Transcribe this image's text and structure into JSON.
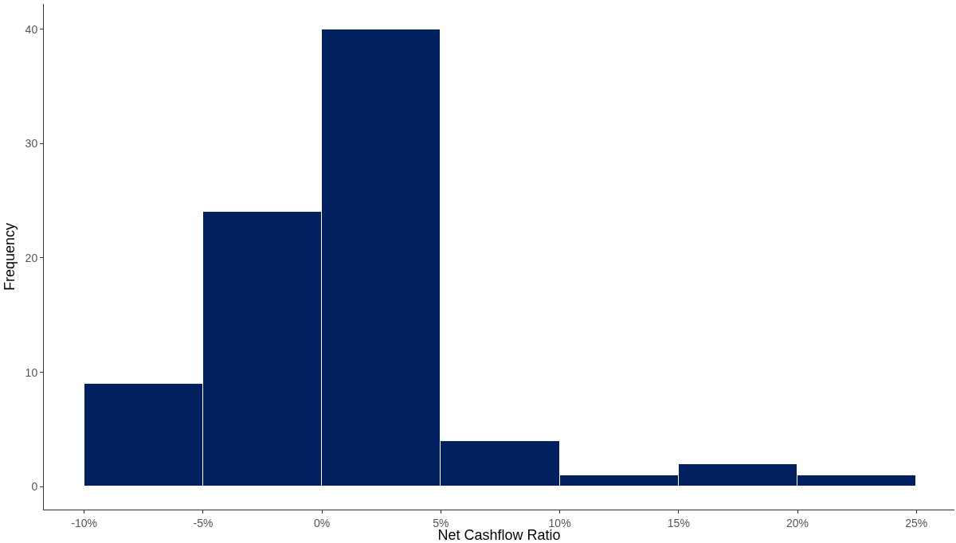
{
  "chart_data": {
    "type": "histogram",
    "xlabel": "Net Cashflow Ratio",
    "ylabel": "Frequency",
    "bins": [
      -10,
      -5,
      0,
      5,
      10,
      15,
      20,
      25
    ],
    "values": [
      9,
      24,
      40,
      4,
      1,
      2,
      1
    ],
    "color": "#002060",
    "xlim": [
      -11.7,
      26.6
    ],
    "ylim": [
      -2,
      42.2
    ],
    "xticks": [
      {
        "value": -10,
        "label": "-10%"
      },
      {
        "value": -5,
        "label": "-5%"
      },
      {
        "value": 0,
        "label": "0%"
      },
      {
        "value": 5,
        "label": "5%"
      },
      {
        "value": 10,
        "label": "10%"
      },
      {
        "value": 15,
        "label": "15%"
      },
      {
        "value": 20,
        "label": "20%"
      },
      {
        "value": 25,
        "label": "25%"
      }
    ],
    "yticks": [
      0,
      10,
      20,
      30,
      40
    ]
  }
}
